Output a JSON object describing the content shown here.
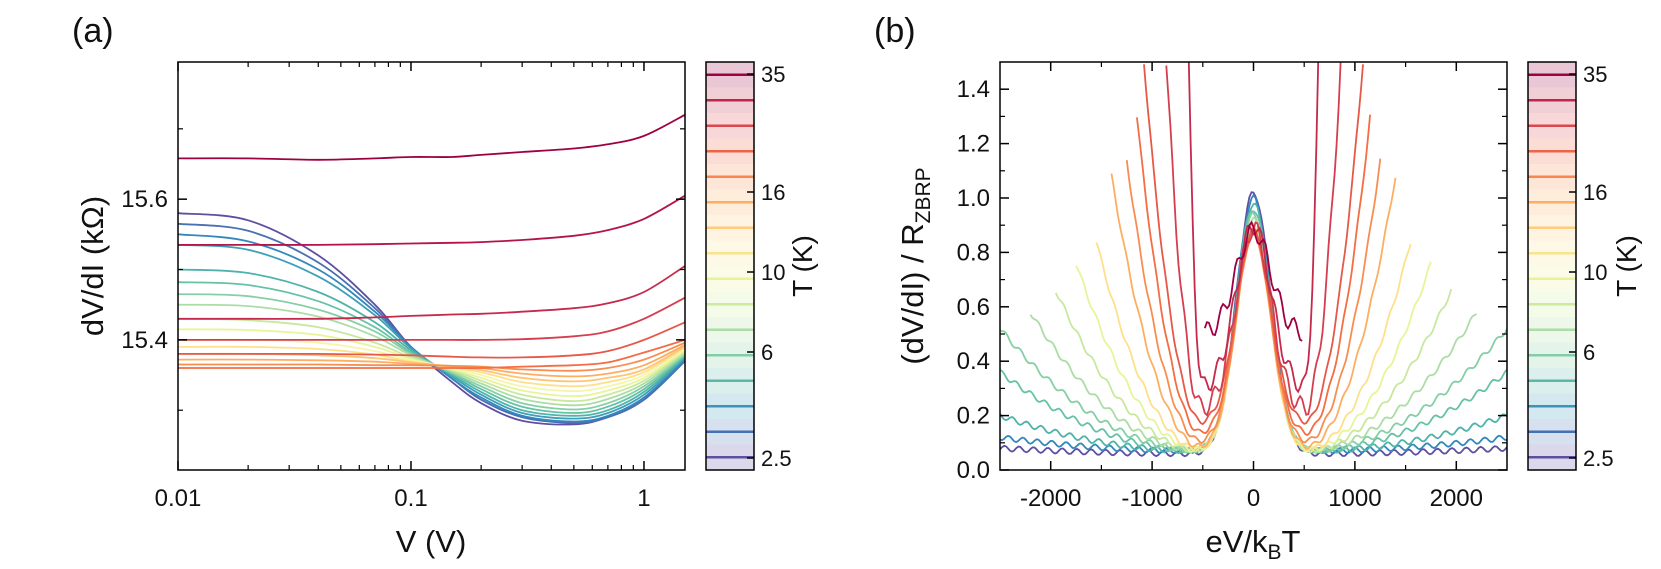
{
  "chart_data": [
    {
      "panel_label": "(a)",
      "type": "line",
      "xlabel": "V (V)",
      "ylabel": "dV/dI (kΩ)",
      "xscale": "log",
      "xlim": [
        0.01,
        1.5
      ],
      "ylim": [
        15.215,
        15.795
      ],
      "xticks": [
        0.01,
        0.1,
        1
      ],
      "xtick_labels": [
        "0.01",
        "0.1",
        "1"
      ],
      "yticks": [
        15.4,
        15.6
      ],
      "ytick_labels": [
        "15.4",
        "15.6"
      ],
      "colorbar": {
        "label": "T (K)",
        "tick_labels": [
          "35",
          "16",
          "10",
          "6",
          "2.5"
        ],
        "colors_low_to_high": [
          "#5e4fa2",
          "#3288bd",
          "#66c2a5",
          "#abdda4",
          "#e6f598",
          "#fee08b",
          "#fdae61",
          "#f46d43",
          "#d53e4f",
          "#9e0142"
        ]
      },
      "series": [
        {
          "color": "#5e4fa2",
          "x": [
            0.01,
            0.02,
            0.04,
            0.07,
            0.1,
            0.15,
            0.2,
            0.3,
            0.5,
            0.7,
            1.0,
            1.5
          ],
          "y": [
            15.58,
            15.57,
            15.52,
            15.45,
            15.39,
            15.34,
            15.31,
            15.285,
            15.28,
            15.29,
            15.315,
            15.37
          ]
        },
        {
          "color": "#4b6fb3",
          "x": [
            0.01,
            0.02,
            0.04,
            0.07,
            0.1,
            0.15,
            0.2,
            0.3,
            0.5,
            0.7,
            1.0,
            1.5
          ],
          "y": [
            15.565,
            15.555,
            15.51,
            15.445,
            15.39,
            15.345,
            15.315,
            15.29,
            15.282,
            15.29,
            15.315,
            15.37
          ]
        },
        {
          "color": "#3288bd",
          "x": [
            0.01,
            0.02,
            0.04,
            0.07,
            0.1,
            0.15,
            0.2,
            0.3,
            0.5,
            0.7,
            1.0,
            1.5
          ],
          "y": [
            15.55,
            15.54,
            15.5,
            15.44,
            15.39,
            15.345,
            15.318,
            15.292,
            15.284,
            15.292,
            15.318,
            15.372
          ]
        },
        {
          "color": "#3e9fb8",
          "x": [
            0.01,
            0.02,
            0.04,
            0.07,
            0.1,
            0.15,
            0.2,
            0.3,
            0.5,
            0.7,
            1.0,
            1.5
          ],
          "y": [
            15.535,
            15.528,
            15.49,
            15.435,
            15.388,
            15.348,
            15.322,
            15.296,
            15.288,
            15.296,
            15.322,
            15.374
          ]
        },
        {
          "color": "#4fb3ab",
          "x": [
            0.01,
            0.02,
            0.04,
            0.07,
            0.1,
            0.15,
            0.2,
            0.3,
            0.5,
            0.7,
            1.0,
            1.5
          ],
          "y": [
            15.5,
            15.495,
            15.468,
            15.425,
            15.385,
            15.35,
            15.326,
            15.3,
            15.292,
            15.3,
            15.326,
            15.376
          ]
        },
        {
          "color": "#66c2a5",
          "x": [
            0.01,
            0.02,
            0.04,
            0.07,
            0.1,
            0.15,
            0.2,
            0.3,
            0.5,
            0.7,
            1.0,
            1.5
          ],
          "y": [
            15.482,
            15.478,
            15.455,
            15.418,
            15.382,
            15.352,
            15.33,
            15.305,
            15.296,
            15.305,
            15.33,
            15.378
          ]
        },
        {
          "color": "#86cfa5",
          "x": [
            0.01,
            0.02,
            0.04,
            0.07,
            0.1,
            0.15,
            0.2,
            0.3,
            0.5,
            0.7,
            1.0,
            1.5
          ],
          "y": [
            15.465,
            15.462,
            15.443,
            15.412,
            15.38,
            15.353,
            15.334,
            15.31,
            15.301,
            15.31,
            15.334,
            15.379
          ]
        },
        {
          "color": "#abdda4",
          "x": [
            0.01,
            0.02,
            0.04,
            0.07,
            0.1,
            0.15,
            0.2,
            0.3,
            0.5,
            0.7,
            1.0,
            1.5
          ],
          "y": [
            15.45,
            15.448,
            15.433,
            15.405,
            15.378,
            15.355,
            15.338,
            15.316,
            15.307,
            15.316,
            15.338,
            15.381
          ]
        },
        {
          "color": "#c7e89e",
          "x": [
            0.01,
            0.02,
            0.04,
            0.07,
            0.1,
            0.15,
            0.2,
            0.3,
            0.5,
            0.7,
            1.0,
            1.5
          ],
          "y": [
            15.43,
            15.428,
            15.418,
            15.396,
            15.375,
            15.357,
            15.342,
            15.322,
            15.313,
            15.322,
            15.342,
            15.383
          ]
        },
        {
          "color": "#e6f598",
          "x": [
            0.01,
            0.02,
            0.04,
            0.07,
            0.1,
            0.15,
            0.2,
            0.3,
            0.5,
            0.7,
            1.0,
            1.5
          ],
          "y": [
            15.415,
            15.414,
            15.407,
            15.39,
            15.373,
            15.358,
            15.346,
            15.328,
            15.32,
            15.328,
            15.346,
            15.385
          ]
        },
        {
          "color": "#f6f5ad",
          "x": [
            0.01,
            0.02,
            0.04,
            0.07,
            0.1,
            0.15,
            0.2,
            0.3,
            0.5,
            0.7,
            1.0,
            1.5
          ],
          "y": [
            15.4,
            15.4,
            15.396,
            15.384,
            15.371,
            15.36,
            15.35,
            15.334,
            15.327,
            15.334,
            15.35,
            15.387
          ]
        },
        {
          "color": "#fee08b",
          "x": [
            0.01,
            0.02,
            0.04,
            0.07,
            0.1,
            0.15,
            0.2,
            0.3,
            0.5,
            0.7,
            1.0,
            1.5
          ],
          "y": [
            15.39,
            15.39,
            15.387,
            15.379,
            15.369,
            15.361,
            15.354,
            15.34,
            15.334,
            15.34,
            15.354,
            15.389
          ]
        },
        {
          "color": "#fdc574",
          "x": [
            0.01,
            0.02,
            0.04,
            0.07,
            0.1,
            0.15,
            0.2,
            0.3,
            0.5,
            0.7,
            1.0,
            1.5
          ],
          "y": [
            15.38,
            15.38,
            15.378,
            15.374,
            15.368,
            15.362,
            15.357,
            15.346,
            15.341,
            15.346,
            15.358,
            15.391
          ]
        },
        {
          "color": "#fdae61",
          "x": [
            0.01,
            0.02,
            0.04,
            0.07,
            0.1,
            0.15,
            0.2,
            0.3,
            0.5,
            0.7,
            1.0,
            1.5
          ],
          "y": [
            15.372,
            15.372,
            15.371,
            15.369,
            15.366,
            15.363,
            15.36,
            15.352,
            15.348,
            15.352,
            15.364,
            15.393
          ]
        },
        {
          "color": "#f88d52",
          "x": [
            0.01,
            0.02,
            0.04,
            0.07,
            0.1,
            0.15,
            0.2,
            0.3,
            0.5,
            0.7,
            1.0,
            1.5
          ],
          "y": [
            15.365,
            15.365,
            15.365,
            15.364,
            15.364,
            15.363,
            15.362,
            15.358,
            15.356,
            15.36,
            15.372,
            15.396
          ]
        },
        {
          "color": "#f46d43",
          "x": [
            0.01,
            0.02,
            0.04,
            0.07,
            0.1,
            0.15,
            0.2,
            0.3,
            0.5,
            0.7,
            1.0,
            1.5
          ],
          "y": [
            15.36,
            15.36,
            15.36,
            15.36,
            15.36,
            15.36,
            15.36,
            15.362,
            15.364,
            15.368,
            15.382,
            15.4
          ]
        },
        {
          "color": "#e65848",
          "x": [
            0.01,
            0.02,
            0.04,
            0.07,
            0.1,
            0.15,
            0.2,
            0.3,
            0.5,
            0.7,
            1.0,
            1.5
          ],
          "y": [
            15.38,
            15.38,
            15.38,
            15.379,
            15.378,
            15.376,
            15.375,
            15.375,
            15.378,
            15.384,
            15.4,
            15.425
          ]
        },
        {
          "color": "#d53e4f",
          "x": [
            0.01,
            0.02,
            0.04,
            0.07,
            0.1,
            0.15,
            0.2,
            0.3,
            0.5,
            0.7,
            1.0,
            1.5
          ],
          "y": [
            15.4,
            15.4,
            15.4,
            15.4,
            15.4,
            15.4,
            15.4,
            15.401,
            15.405,
            15.412,
            15.43,
            15.46
          ]
        },
        {
          "color": "#c42a4b",
          "x": [
            0.01,
            0.02,
            0.04,
            0.07,
            0.1,
            0.15,
            0.2,
            0.3,
            0.5,
            0.7,
            1.0,
            1.5
          ],
          "y": [
            15.43,
            15.43,
            15.43,
            15.432,
            15.434,
            15.436,
            15.437,
            15.44,
            15.445,
            15.452,
            15.468,
            15.505
          ]
        },
        {
          "color": "#b31548",
          "x": [
            0.01,
            0.02,
            0.04,
            0.07,
            0.1,
            0.15,
            0.2,
            0.3,
            0.5,
            0.7,
            1.0,
            1.5
          ],
          "y": [
            15.535,
            15.535,
            15.535,
            15.536,
            15.537,
            15.538,
            15.539,
            15.542,
            15.548,
            15.556,
            15.572,
            15.605
          ]
        },
        {
          "color": "#9e0142",
          "x": [
            0.01,
            0.02,
            0.04,
            0.07,
            0.1,
            0.15,
            0.2,
            0.3,
            0.5,
            0.7,
            1.0,
            1.5
          ],
          "y": [
            15.658,
            15.658,
            15.656,
            15.658,
            15.66,
            15.66,
            15.663,
            15.667,
            15.672,
            15.678,
            15.69,
            15.72
          ]
        }
      ]
    },
    {
      "panel_label": "(b)",
      "type": "line",
      "xlabel": "eV/k_BT",
      "ylabel": "(dV/dI) / R_ZBRP",
      "xlim": [
        -2500,
        2500
      ],
      "ylim": [
        0,
        1.5
      ],
      "xticks": [
        -2000,
        -1000,
        0,
        1000,
        2000
      ],
      "xtick_labels": [
        "-2000",
        "-1000",
        "0",
        "1000",
        "2000"
      ],
      "yticks": [
        0.0,
        0.2,
        0.4,
        0.6,
        0.8,
        1.0,
        1.2,
        1.4
      ],
      "ytick_labels": [
        "0.0",
        "0.2",
        "0.4",
        "0.6",
        "0.8",
        "1.0",
        "1.2",
        "1.4"
      ],
      "colorbar": {
        "label": "T (K)",
        "tick_labels": [
          "35",
          "16",
          "10",
          "6",
          "2.5"
        ],
        "colors_low_to_high": [
          "#5e4fa2",
          "#3288bd",
          "#66c2a5",
          "#abdda4",
          "#e6f598",
          "#fee08b",
          "#fdae61",
          "#f46d43",
          "#d53e4f",
          "#9e0142"
        ]
      },
      "series": [
        {
          "color": "#5e4fa2",
          "peak": 1.02,
          "base": 0.06,
          "xmax": 2500,
          "yend": 0.08
        },
        {
          "color": "#3288bd",
          "peak": 1.0,
          "base": 0.07,
          "xmax": 2500,
          "yend": 0.12
        },
        {
          "color": "#4fb3ab",
          "peak": 0.98,
          "base": 0.07,
          "xmax": 2500,
          "yend": 0.2
        },
        {
          "color": "#66c2a5",
          "peak": 0.96,
          "base": 0.07,
          "xmax": 2500,
          "yend": 0.36
        },
        {
          "color": "#86cfa5",
          "peak": 0.94,
          "base": 0.07,
          "xmax": 2500,
          "yend": 0.52
        },
        {
          "color": "#abdda4",
          "peak": 0.92,
          "base": 0.07,
          "xmax": 2200,
          "yend": 0.58
        },
        {
          "color": "#c7e89e",
          "peak": 0.9,
          "base": 0.07,
          "xmax": 1950,
          "yend": 0.66
        },
        {
          "color": "#e6f598",
          "peak": 0.89,
          "base": 0.07,
          "xmax": 1750,
          "yend": 0.76
        },
        {
          "color": "#fee08b",
          "peak": 0.88,
          "base": 0.07,
          "xmax": 1550,
          "yend": 0.84
        },
        {
          "color": "#fdae61",
          "peak": 0.87,
          "base": 0.08,
          "xmax": 1400,
          "yend": 1.08
        },
        {
          "color": "#f88d52",
          "peak": 0.87,
          "base": 0.1,
          "xmax": 1250,
          "yend": 1.14
        },
        {
          "color": "#f46d43",
          "peak": 0.87,
          "base": 0.13,
          "xmax": 1150,
          "yend": 1.3
        },
        {
          "color": "#e65848",
          "peak": 0.88,
          "base": 0.17,
          "xmax": 1080,
          "yend": 1.5
        },
        {
          "color": "#d53e4f",
          "peak": 0.89,
          "base": 0.22,
          "xmax": 860,
          "yend": 1.5
        },
        {
          "color": "#c42a4b",
          "peak": 0.9,
          "base": 0.3,
          "xmax": 640,
          "yend": 1.5
        },
        {
          "color": "#9e0142",
          "peak": 0.88,
          "base": 0.5,
          "xmax": 480,
          "yend": 1.5
        }
      ]
    }
  ]
}
